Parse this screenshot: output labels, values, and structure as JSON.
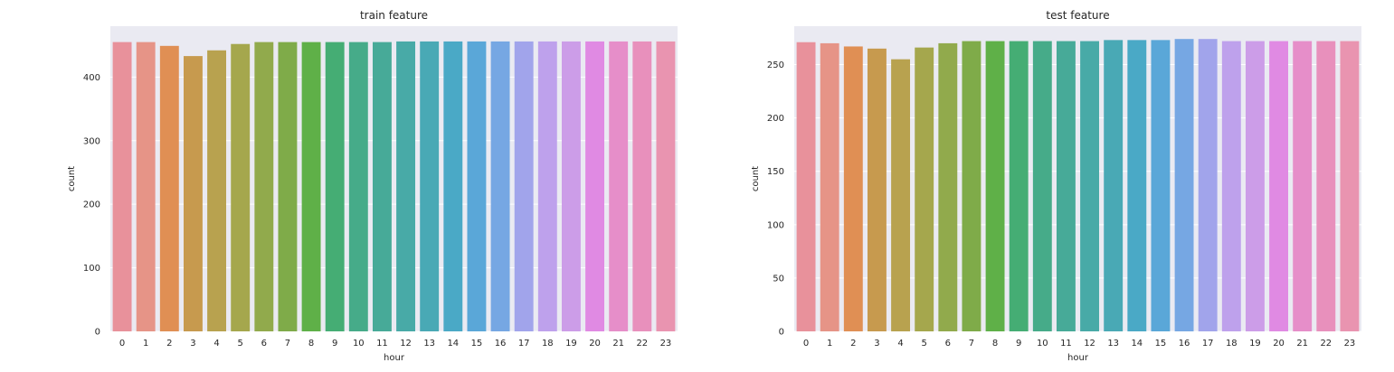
{
  "chart_data": [
    {
      "type": "bar",
      "title": "train feature",
      "xlabel": "hour",
      "ylabel": "count",
      "categories": [
        "0",
        "1",
        "2",
        "3",
        "4",
        "5",
        "6",
        "7",
        "8",
        "9",
        "10",
        "11",
        "12",
        "13",
        "14",
        "15",
        "16",
        "17",
        "18",
        "19",
        "20",
        "21",
        "22",
        "23"
      ],
      "values": [
        455,
        455,
        449,
        433,
        442,
        452,
        455,
        455,
        455,
        455,
        455,
        455,
        456,
        456,
        456,
        456,
        456,
        456,
        456,
        456,
        456,
        456,
        456,
        456
      ],
      "ylim": [
        0,
        480
      ],
      "yticks": [
        0,
        100,
        200,
        300,
        400
      ],
      "grid": true,
      "background": "#eaeaf2"
    },
    {
      "type": "bar",
      "title": "test feature",
      "xlabel": "hour",
      "ylabel": "count",
      "categories": [
        "0",
        "1",
        "2",
        "3",
        "4",
        "5",
        "6",
        "7",
        "8",
        "9",
        "10",
        "11",
        "12",
        "13",
        "14",
        "15",
        "16",
        "17",
        "18",
        "19",
        "20",
        "21",
        "22",
        "23"
      ],
      "values": [
        271,
        270,
        267,
        265,
        255,
        266,
        270,
        272,
        272,
        272,
        272,
        272,
        272,
        273,
        273,
        273,
        274,
        274,
        272,
        272,
        272,
        272,
        272,
        272
      ],
      "ylim": [
        0,
        286
      ],
      "yticks": [
        0,
        50,
        100,
        150,
        200,
        250
      ],
      "grid": true,
      "background": "#eaeaf2"
    }
  ],
  "palette": [
    "#e8919b",
    "#e69487",
    "#e08f54",
    "#c79a4e",
    "#b8a24f",
    "#a5a74d",
    "#91aa4c",
    "#7fab49",
    "#5fb048",
    "#45ad74",
    "#46ab89",
    "#47aa98",
    "#48aaa7",
    "#49a9b5",
    "#4aa9c6",
    "#5aa7d8",
    "#76a7e3",
    "#a1a4eb",
    "#bea1ec",
    "#cc9de8",
    "#e08ae3",
    "#e68ec9",
    "#e890bc",
    "#e994b0"
  ]
}
